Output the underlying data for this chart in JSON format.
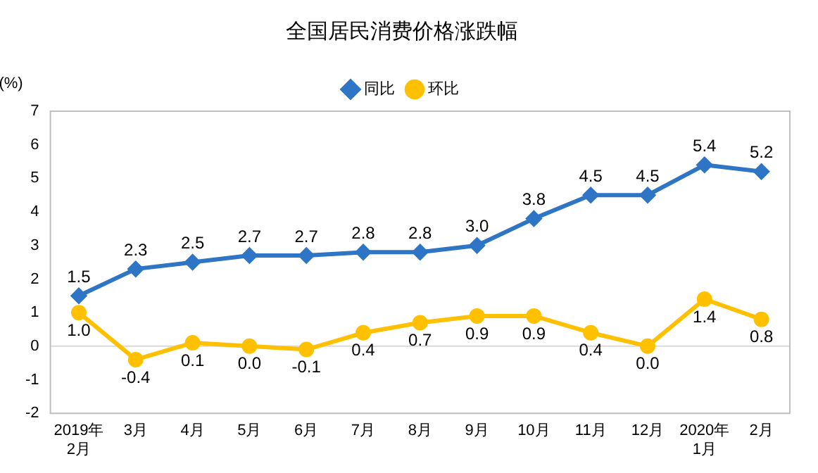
{
  "chart_data": {
    "type": "line",
    "title": "全国居民消费价格涨跌幅",
    "ylabel": "(%)",
    "categories": [
      "2019年\n2月",
      "3月",
      "4月",
      "5月",
      "6月",
      "7月",
      "8月",
      "9月",
      "10月",
      "11月",
      "12月",
      "2020年\n1月",
      "2月"
    ],
    "series": [
      {
        "name": "同比",
        "color": "#2e75c6",
        "marker": "diamond",
        "values": [
          1.5,
          2.3,
          2.5,
          2.7,
          2.7,
          2.8,
          2.8,
          3.0,
          3.8,
          4.5,
          4.5,
          5.4,
          5.2
        ],
        "value_labels": [
          "1.5",
          "2.3",
          "2.5",
          "2.7",
          "2.7",
          "2.8",
          "2.8",
          "3.0",
          "3.8",
          "4.5",
          "4.5",
          "5.4",
          "5.2"
        ]
      },
      {
        "name": "环比",
        "color": "#ffc000",
        "marker": "circle",
        "values": [
          1.0,
          -0.4,
          0.1,
          0.0,
          -0.1,
          0.4,
          0.7,
          0.9,
          0.9,
          0.4,
          0.0,
          1.4,
          0.8
        ],
        "value_labels": [
          "1.0",
          "-0.4",
          "0.1",
          "0.0",
          "-0.1",
          "0.4",
          "0.7",
          "0.9",
          "0.9",
          "0.4",
          "0.0",
          "1.4",
          "0.8"
        ]
      }
    ],
    "ylim": [
      -2,
      7
    ],
    "yticks": [
      -2,
      -1,
      0,
      1,
      2,
      3,
      4,
      5,
      6,
      7
    ],
    "grid": false,
    "legend": "top",
    "line_style": "solid",
    "ref_lines": [
      {
        "axis": "y",
        "value": 0,
        "color": "#d9d9d9"
      }
    ]
  }
}
